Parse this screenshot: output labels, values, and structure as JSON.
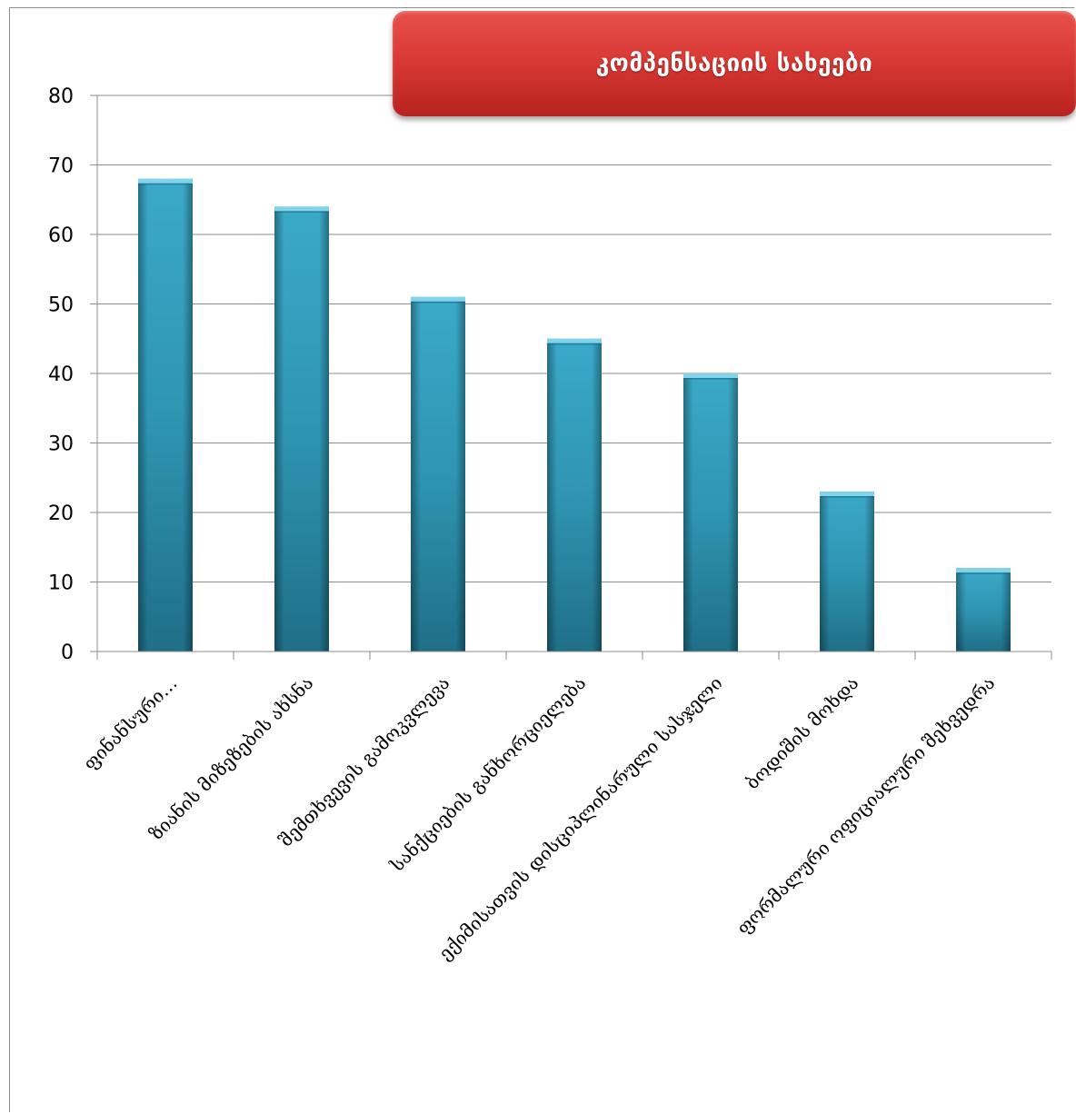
{
  "chart_data": {
    "type": "bar",
    "title": "კომპენსაციის სახეები",
    "categories": [
      "ფინანსური…",
      "ზიანის მიზეზების ახსნა",
      "შემთხვევის გამოკვლევა",
      "სანქციების განხორციელება",
      "ექიმისათვის დისციპლინარული სასჯელი",
      "ბოდიშის მოხდა",
      "ფორმალური ოფიციალური შეხვედრა"
    ],
    "values": [
      68,
      64,
      51,
      45,
      40,
      23,
      12
    ],
    "ylim": [
      0,
      80
    ],
    "yticks": [
      0,
      10,
      20,
      30,
      40,
      50,
      60,
      70,
      80
    ],
    "grid": true,
    "legend": "none",
    "colors": {
      "bar_top": "#3aa9c8",
      "bar_mid": "#2f95b3",
      "bar_bottom": "#1f6f87",
      "gridline": "#8c8c8c",
      "title_banner": "#d93a36"
    }
  }
}
